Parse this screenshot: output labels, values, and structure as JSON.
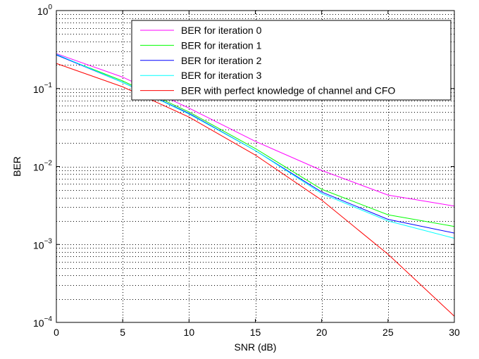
{
  "chart_data": {
    "type": "line",
    "title": "",
    "xlabel": "SNR (dB)",
    "ylabel": "BER",
    "xlim": [
      0,
      30
    ],
    "ylim": [
      0.0001,
      1
    ],
    "yscale": "log",
    "grid": true,
    "legend_position": "top-right",
    "x_ticks": [
      "0",
      "5",
      "10",
      "15",
      "20",
      "25",
      "30"
    ],
    "y_ticks": [
      {
        "base": "10",
        "exp": "−4"
      },
      {
        "base": "10",
        "exp": "−3"
      },
      {
        "base": "10",
        "exp": "−2"
      },
      {
        "base": "10",
        "exp": "−1"
      },
      {
        "base": "10",
        "exp": "0"
      }
    ],
    "x": [
      0,
      5,
      10,
      15,
      20,
      25,
      30
    ],
    "series": [
      {
        "name": "BER for iteration 0",
        "color": "#ff00ff",
        "values": [
          0.28,
          0.14,
          0.056,
          0.021,
          0.0089,
          0.0043,
          0.0031
        ]
      },
      {
        "name": "BER for iteration 1",
        "color": "#00ff00",
        "values": [
          0.27,
          0.125,
          0.05,
          0.017,
          0.0051,
          0.0024,
          0.0017
        ]
      },
      {
        "name": "BER for iteration 2",
        "color": "#0000ff",
        "values": [
          0.27,
          0.12,
          0.048,
          0.016,
          0.0047,
          0.0021,
          0.0014
        ]
      },
      {
        "name": "BER for iteration 3",
        "color": "#00ffff",
        "values": [
          0.275,
          0.12,
          0.047,
          0.016,
          0.0045,
          0.002,
          0.0012
        ]
      },
      {
        "name": "BER with perfect knowledge of channel and CFO",
        "color": "#ff0000",
        "values": [
          0.21,
          0.105,
          0.043,
          0.014,
          0.0037,
          0.00075,
          0.00012
        ]
      }
    ]
  }
}
